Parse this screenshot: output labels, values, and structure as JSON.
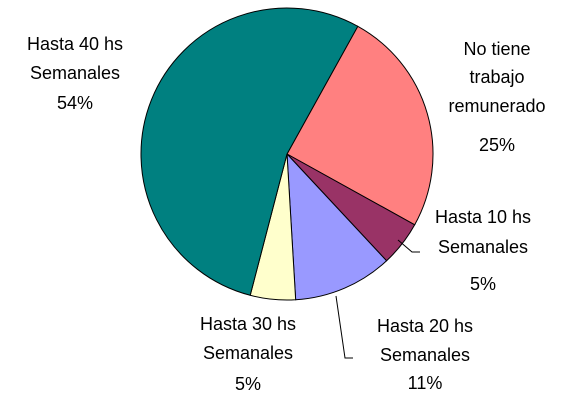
{
  "chart_data": {
    "type": "pie",
    "categories": [
      [
        "No tiene",
        "trabajo",
        "remunerado"
      ],
      [
        "Hasta 10 hs",
        "Semanales"
      ],
      [
        "Hasta 20 hs",
        "Semanales"
      ],
      [
        "Hasta 30 hs",
        "Semanales"
      ],
      [
        "Hasta 40 hs",
        "Semanales"
      ]
    ],
    "values": [
      25,
      5,
      11,
      5,
      54
    ],
    "value_labels": [
      "25%",
      "5%",
      "11%",
      "5%",
      "54%"
    ],
    "colors": [
      "#FF8080",
      "#993366",
      "#9999FF",
      "#FFFFCC",
      "#008080"
    ]
  }
}
